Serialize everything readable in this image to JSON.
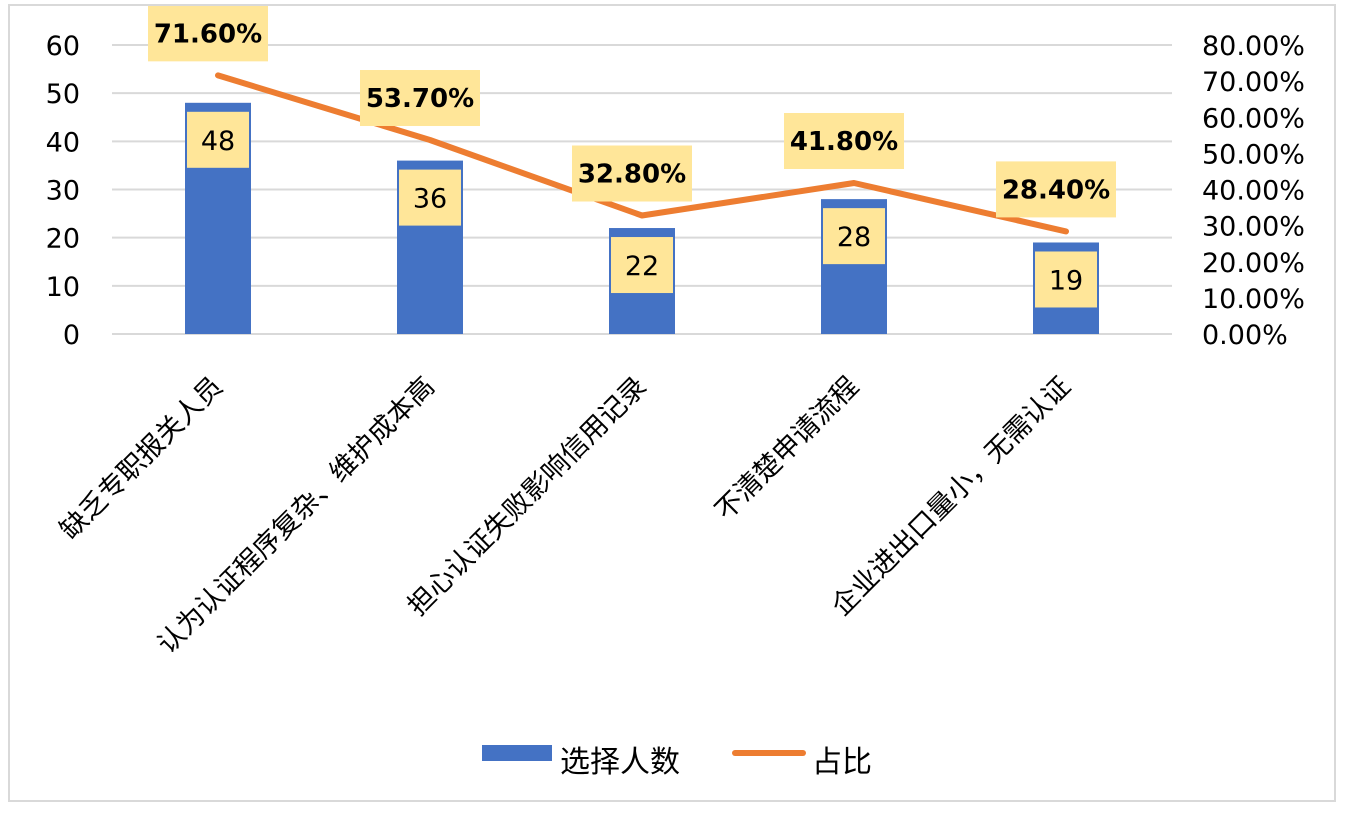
{
  "chart_data": {
    "type": "bar",
    "categories": [
      "缺乏专职报关人员",
      "认为认证程序复杂、维护成本高",
      "担心认证失败影响信用记录",
      "不清楚申请流程",
      "企业进出口量小，无需认证"
    ],
    "series": [
      {
        "name": "选择人数",
        "type": "bar",
        "axis": "left",
        "values": [
          48,
          36,
          22,
          28,
          19
        ],
        "labels": [
          "48",
          "36",
          "22",
          "28",
          "19"
        ],
        "color": "#4472C4"
      },
      {
        "name": "占比",
        "type": "line",
        "axis": "right",
        "values": [
          71.6,
          53.7,
          32.8,
          41.8,
          28.4
        ],
        "labels": [
          "71.60%",
          "53.70%",
          "32.80%",
          "41.80%",
          "28.40%"
        ],
        "color": "#ED7D31"
      }
    ],
    "y_left": {
      "range": [
        0,
        60
      ],
      "ticks": [
        0,
        10,
        20,
        30,
        40,
        50,
        60
      ],
      "tick_labels": [
        "0",
        "10",
        "20",
        "30",
        "40",
        "50",
        "60"
      ]
    },
    "y_right": {
      "range": [
        0,
        80
      ],
      "ticks": [
        0,
        10,
        20,
        30,
        40,
        50,
        60,
        70,
        80
      ],
      "tick_labels": [
        "0.00%",
        "10.00%",
        "20.00%",
        "30.00%",
        "40.00%",
        "50.00%",
        "60.00%",
        "70.00%",
        "80.00%"
      ]
    },
    "grid": true,
    "legend_position": "bottom",
    "data_label_background": "#FFE699",
    "grid_color": "#D9D9D9"
  }
}
